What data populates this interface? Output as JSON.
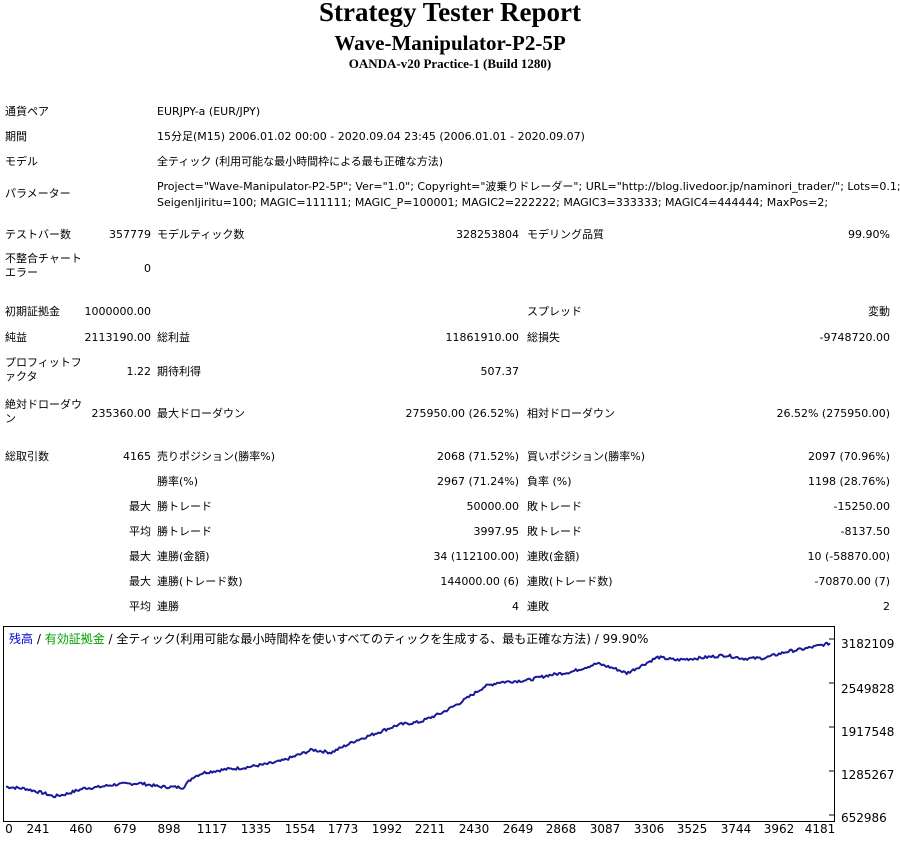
{
  "header": {
    "title": "Strategy Tester Report",
    "ea_name": "Wave-Manipulator-P2-5P",
    "server": "OANDA-v20 Practice-1 (Build 1280)"
  },
  "info": {
    "pair_label": "通貨ペア",
    "pair_value": "EURJPY-a (EUR/JPY)",
    "period_label": "期間",
    "period_value": "15分足(M15) 2006.01.02 00:00 - 2020.09.04 23:45 (2006.01.01 - 2020.09.07)",
    "model_label": "モデル",
    "model_value": "全ティック (利用可能な最小時間枠による最も正確な方法)",
    "params_label": "パラメーター",
    "params_line1": "Project=\"Wave-Manipulator-P2-5P\"; Ver=\"1.0\"; Copyright=\"波乗りドレーダー\"; URL=\"http://blog.livedoor.jp/naminori_trader/\"; Lots=0.1;",
    "params_line2": "SeigenIjiritu=100; MAGIC=111111; MAGIC_P=100001; MAGIC2=222222; MAGIC3=333333; MAGIC4=444444; MaxPos=2;"
  },
  "stats": {
    "bars_label": "テストバー数",
    "bars_value": "357779",
    "ticks_label": "モデルティック数",
    "ticks_value": "328253804",
    "quality_label": "モデリング品質",
    "quality_value": "99.90%",
    "mismatch_label": "不整合チャートエラー",
    "mismatch_value": "0",
    "deposit_label": "初期証拠金",
    "deposit_value": "1000000.00",
    "spread_label": "スプレッド",
    "spread_value": "変動",
    "net_label": "純益",
    "net_value": "2113190.00",
    "gross_profit_label": "総利益",
    "gross_profit_value": "11861910.00",
    "gross_loss_label": "総損失",
    "gross_loss_value": "-9748720.00",
    "pf_label": "プロフィットファクタ",
    "pf_value": "1.22",
    "expected_label": "期待利得",
    "expected_value": "507.37",
    "abs_dd_label": "絶対ドローダウン",
    "abs_dd_value": "235360.00",
    "max_dd_label": "最大ドローダウン",
    "max_dd_value": "275950.00 (26.52%)",
    "rel_dd_label": "相対ドローダウン",
    "rel_dd_value": "26.52% (275950.00)",
    "trades_label": "総取引数",
    "trades_value": "4165",
    "short_label": "売りポジション(勝率%)",
    "short_value": "2068 (71.52%)",
    "long_label": "買いポジション(勝率%)",
    "long_value": "2097 (70.96%)",
    "win_rate_label": "勝率(%)",
    "win_rate_value": "2967 (71.24%)",
    "loss_rate_label": "負率 (%)",
    "loss_rate_value": "1198 (28.76%)",
    "max_word": "最大",
    "avg_word": "平均",
    "largest_win_label": "勝トレード",
    "largest_win_value": "50000.00",
    "largest_loss_label": "敗トレード",
    "largest_loss_value": "-15250.00",
    "avg_win_label": "勝トレード",
    "avg_win_value": "3997.95",
    "avg_loss_label": "敗トレード",
    "avg_loss_value": "-8137.50",
    "max_cons_win_amt_label": "連勝(金額)",
    "max_cons_win_amt_value": "34 (112100.00)",
    "max_cons_loss_amt_label": "連敗(金額)",
    "max_cons_loss_amt_value": "10 (-58870.00)",
    "max_cons_win_cnt_label": "連勝(トレード数)",
    "max_cons_win_cnt_value": "144000.00 (6)",
    "max_cons_loss_cnt_label": "連敗(トレード数)",
    "max_cons_loss_cnt_value": "-70870.00 (7)",
    "avg_cons_win_label": "連勝",
    "avg_cons_win_value": "4",
    "avg_cons_loss_label": "連敗",
    "avg_cons_loss_value": "2"
  },
  "chart_data": {
    "type": "line",
    "legend_balance": "残高",
    "legend_sep1": " / ",
    "legend_equity": "有効証拠金",
    "legend_rest": " / 全ティック(利用可能な最小時間枠を使いすべてのティックを生成する、最も正確な方法) / 99.90%",
    "balance_color": "#0000cc",
    "equity_color": "#00a000",
    "line_color": "#1a1a99",
    "x_ticks": [
      "0",
      "241",
      "460",
      "679",
      "898",
      "1117",
      "1335",
      "1554",
      "1773",
      "1992",
      "2211",
      "2430",
      "2649",
      "2868",
      "3087",
      "3306",
      "3525",
      "3744",
      "3962",
      "4181"
    ],
    "y_ticks": [
      "3182109",
      "2549828",
      "1917548",
      "1285267",
      "652986"
    ],
    "xlim": [
      0,
      4181
    ],
    "ylim": [
      652986,
      3182109
    ],
    "series": [
      {
        "x": [
          0,
          100,
          200,
          241,
          300,
          400,
          460,
          550,
          679,
          780,
          898,
          950,
          1000,
          1117,
          1200,
          1335,
          1400,
          1554,
          1650,
          1773,
          1850,
          1992,
          2100,
          2211,
          2300,
          2430,
          2500,
          2649,
          2750,
          2868,
          3000,
          3087,
          3150,
          3306,
          3400,
          3525,
          3650,
          3744,
          3850,
          3962,
          4050,
          4181
        ],
        "y": [
          1060000,
          1030000,
          960000,
          920000,
          950000,
          1040000,
          1050000,
          1090000,
          1110000,
          1060000,
          1050000,
          1200000,
          1260000,
          1310000,
          1330000,
          1390000,
          1430000,
          1590000,
          1550000,
          1720000,
          1800000,
          1950000,
          1990000,
          2120000,
          2260000,
          2500000,
          2560000,
          2590000,
          2660000,
          2710000,
          2830000,
          2760000,
          2690000,
          2920000,
          2880000,
          2910000,
          2950000,
          2900000,
          2910000,
          3000000,
          3040000,
          3120000
        ]
      }
    ]
  }
}
